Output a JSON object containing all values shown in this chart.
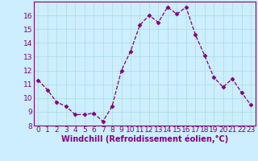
{
  "x": [
    0,
    1,
    2,
    3,
    4,
    5,
    6,
    7,
    8,
    9,
    10,
    11,
    12,
    13,
    14,
    15,
    16,
    17,
    18,
    19,
    20,
    21,
    22,
    23
  ],
  "y": [
    11.3,
    10.6,
    9.7,
    9.4,
    8.8,
    8.8,
    8.9,
    8.3,
    9.4,
    12.0,
    13.4,
    15.3,
    16.0,
    15.5,
    16.6,
    16.1,
    16.6,
    14.6,
    13.1,
    11.5,
    10.8,
    11.4,
    10.4,
    9.5
  ],
  "line_color": "#800080",
  "marker": "D",
  "marker_size": 2.5,
  "background_color": "#cceeff",
  "grid_color": "#aadddd",
  "xlabel": "Windchill (Refroidissement éolien,°C)",
  "xlabel_fontsize": 7,
  "tick_fontsize": 6.5,
  "ylim": [
    8,
    17
  ],
  "xlim": [
    -0.5,
    23.5
  ],
  "yticks": [
    8,
    9,
    10,
    11,
    12,
    13,
    14,
    15,
    16
  ],
  "xticks": [
    0,
    1,
    2,
    3,
    4,
    5,
    6,
    7,
    8,
    9,
    10,
    11,
    12,
    13,
    14,
    15,
    16,
    17,
    18,
    19,
    20,
    21,
    22,
    23
  ]
}
